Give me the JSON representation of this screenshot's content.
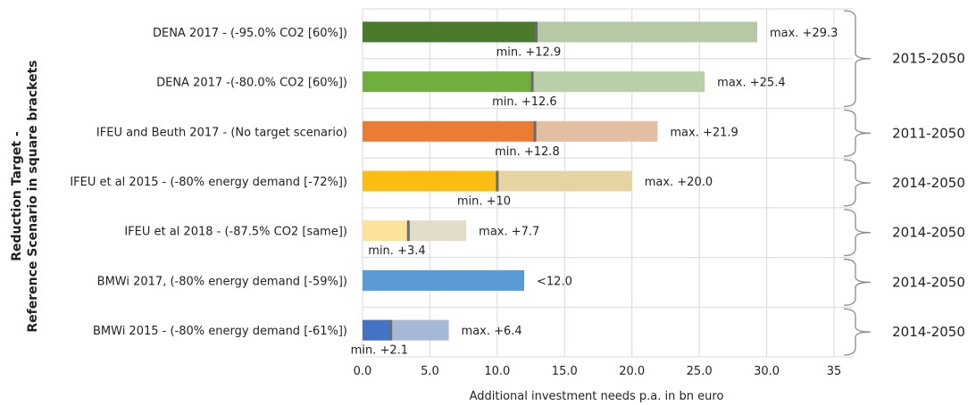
{
  "chart_data": {
    "type": "bar",
    "orientation": "horizontal",
    "stacked_range": true,
    "xlabel": "Additional investment needs p.a. in bn euro",
    "ylabel_line1": "Reduction Target -",
    "ylabel_line2": "Reference Scenario in square brackets",
    "xlim": [
      0,
      35
    ],
    "xticks": [
      "0.0",
      "5.0",
      "10.0",
      "15.0",
      "20.0",
      "25.0",
      "30.0",
      "35"
    ],
    "grid": "vertical",
    "categories": [
      {
        "label": "DENA 2017 - (-95.0% CO2 [60%])",
        "min": 12.9,
        "max": 29.3,
        "min_label": "min. +12.9",
        "max_label": "max. +29.3",
        "color_min": "#4a7a2c",
        "color_max": "#b5c9a6"
      },
      {
        "label": "DENA 2017 -(-80.0% CO2 [60%])",
        "min": 12.6,
        "max": 25.4,
        "min_label": "min. +12.6",
        "max_label": "max. +25.4",
        "color_min": "#6fae3f",
        "color_max": "#b9cfaa"
      },
      {
        "label": "IFEU and Beuth 2017 - (No target scenario)",
        "min": 12.8,
        "max": 21.9,
        "min_label": "min. +12.8",
        "max_label": "max. +21.9",
        "color_min": "#eb7d33",
        "color_max": "#e2bfa3"
      },
      {
        "label": "IFEU et al 2015 - (-80% energy demand [-72%])",
        "min": 10,
        "max": 20.0,
        "min_label": "min. +10",
        "max_label": "max. +20.0",
        "color_min": "#fbbd14",
        "color_max": "#e6d4a2"
      },
      {
        "label": "IFEU et al 2018 - (-87.5% CO2 [same])",
        "min": 3.4,
        "max": 7.7,
        "min_label": "min. +3.4",
        "max_label": "max. +7.7",
        "color_min": "#fce29a",
        "color_max": "#e2dcc9"
      },
      {
        "label": "BMWi 2017, (-80% energy demand [-59%])",
        "min": null,
        "max": 12.0,
        "min_label": "",
        "max_label": "<12.0",
        "color_min": "#5b9bd5",
        "color_max": "#5b9bd5"
      },
      {
        "label": "BMWi 2015 - (-80% energy demand [-61%])",
        "min": 2.1,
        "max": 6.4,
        "min_label": "min. +2.1",
        "max_label": "max. +6.4",
        "color_min": "#4472c4",
        "color_max": "#a6b8d7"
      }
    ],
    "periods": [
      {
        "label": "2015-2050",
        "rows": [
          0,
          1
        ]
      },
      {
        "label": "2011-2050",
        "rows": [
          2
        ]
      },
      {
        "label": "2014-2050",
        "rows": [
          3
        ]
      },
      {
        "label": "2014-2050",
        "rows": [
          4
        ]
      },
      {
        "label": "2014-2050",
        "rows": [
          5
        ]
      },
      {
        "label": "2014-2050",
        "rows": [
          6
        ]
      }
    ],
    "colors": {
      "divider_mark": "#6b6b6b",
      "grid": "#d9d9d9",
      "bracket": "#8c8c8c"
    }
  }
}
